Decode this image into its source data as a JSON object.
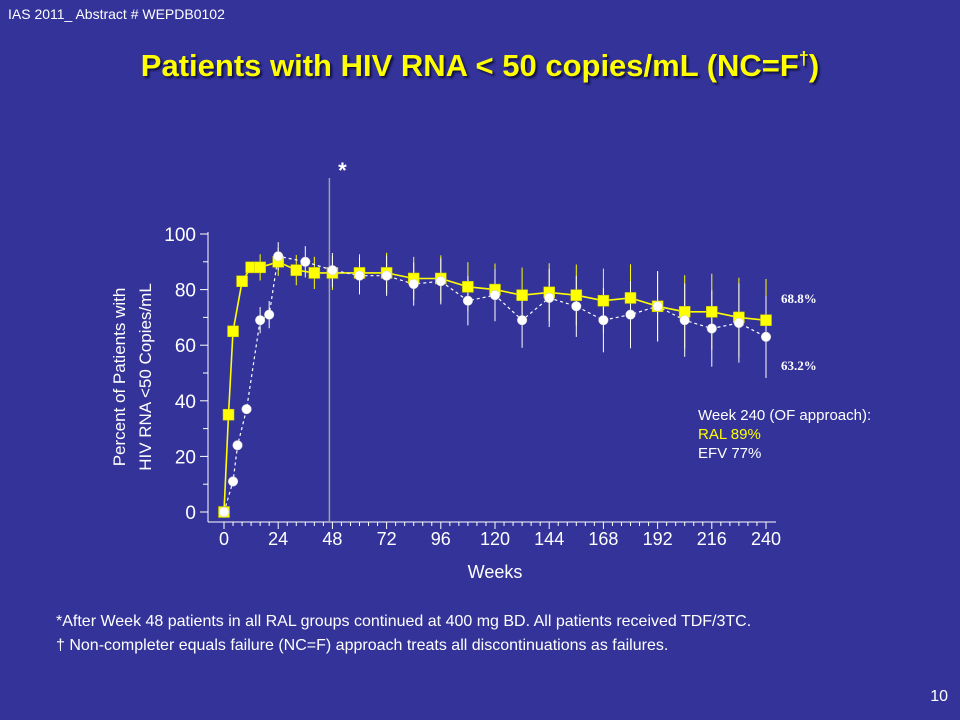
{
  "header": {
    "abstract": "IAS 2011_ Abstract # WEPDB0102",
    "title_main": "Patients with HIV RNA < 50 copies/mL (NC=F",
    "title_sup": "†",
    "title_close": ")"
  },
  "chart_data": {
    "type": "line",
    "title": "Patients with HIV RNA < 50 copies/mL (NC=F†)",
    "xlabel": "Weeks",
    "ylabel_line1": "Percent of Patients with",
    "ylabel_line2": "HIV RNA <50 Copies/mL",
    "xlim": [
      0,
      240
    ],
    "ylim": [
      0,
      100
    ],
    "x_ticks": [
      0,
      24,
      48,
      72,
      96,
      120,
      144,
      168,
      192,
      216,
      240
    ],
    "y_ticks": [
      0,
      20,
      40,
      60,
      80,
      100
    ],
    "grid": false,
    "legend": "none",
    "vertical_marker": {
      "x": 48,
      "label": "*"
    },
    "series": [
      {
        "color": "#ffff00",
        "marker": "square",
        "points": [
          {
            "x": 0,
            "y": 0
          },
          {
            "x": 2,
            "y": 35
          },
          {
            "x": 4,
            "y": 65
          },
          {
            "x": 8,
            "y": 83
          },
          {
            "x": 12,
            "y": 88
          },
          {
            "x": 16,
            "y": 88
          },
          {
            "x": 24,
            "y": 90
          },
          {
            "x": 32,
            "y": 87
          },
          {
            "x": 40,
            "y": 86
          },
          {
            "x": 48,
            "y": 86
          },
          {
            "x": 60,
            "y": 86
          },
          {
            "x": 72,
            "y": 86
          },
          {
            "x": 84,
            "y": 84
          },
          {
            "x": 96,
            "y": 84
          },
          {
            "x": 108,
            "y": 81
          },
          {
            "x": 120,
            "y": 80
          },
          {
            "x": 132,
            "y": 78
          },
          {
            "x": 144,
            "y": 79
          },
          {
            "x": 156,
            "y": 78
          },
          {
            "x": 168,
            "y": 76
          },
          {
            "x": 180,
            "y": 77
          },
          {
            "x": 192,
            "y": 74
          },
          {
            "x": 204,
            "y": 72
          },
          {
            "x": 216,
            "y": 72
          },
          {
            "x": 228,
            "y": 70
          },
          {
            "x": 240,
            "y": 69
          }
        ],
        "end_label": "68.8%"
      },
      {
        "color": "#ffffff",
        "marker": "circle",
        "points": [
          {
            "x": 0,
            "y": 0
          },
          {
            "x": 4,
            "y": 11
          },
          {
            "x": 6,
            "y": 24
          },
          {
            "x": 10,
            "y": 37
          },
          {
            "x": 16,
            "y": 69
          },
          {
            "x": 20,
            "y": 71
          },
          {
            "x": 24,
            "y": 92
          },
          {
            "x": 36,
            "y": 90
          },
          {
            "x": 48,
            "y": 87
          },
          {
            "x": 60,
            "y": 85
          },
          {
            "x": 72,
            "y": 85
          },
          {
            "x": 84,
            "y": 82
          },
          {
            "x": 96,
            "y": 83
          },
          {
            "x": 108,
            "y": 76
          },
          {
            "x": 120,
            "y": 78
          },
          {
            "x": 132,
            "y": 69
          },
          {
            "x": 144,
            "y": 77
          },
          {
            "x": 156,
            "y": 74
          },
          {
            "x": 168,
            "y": 69
          },
          {
            "x": 180,
            "y": 71
          },
          {
            "x": 192,
            "y": 74
          },
          {
            "x": 204,
            "y": 69
          },
          {
            "x": 216,
            "y": 66
          },
          {
            "x": 228,
            "y": 68
          },
          {
            "x": 240,
            "y": 63
          }
        ],
        "end_label": "63.2%"
      }
    ],
    "annotation": {
      "line1": "Week 240 (OF approach):",
      "line2": "RAL 89%",
      "line3": "EFV 77%"
    }
  },
  "footnotes": {
    "line1": "*After Week 48 patients in all RAL groups continued at 400 mg BD. All patients received TDF/3TC.",
    "line2": "† Non-completer equals failure (NC=F) approach treats all discontinuations as failures."
  },
  "page_number": "10"
}
